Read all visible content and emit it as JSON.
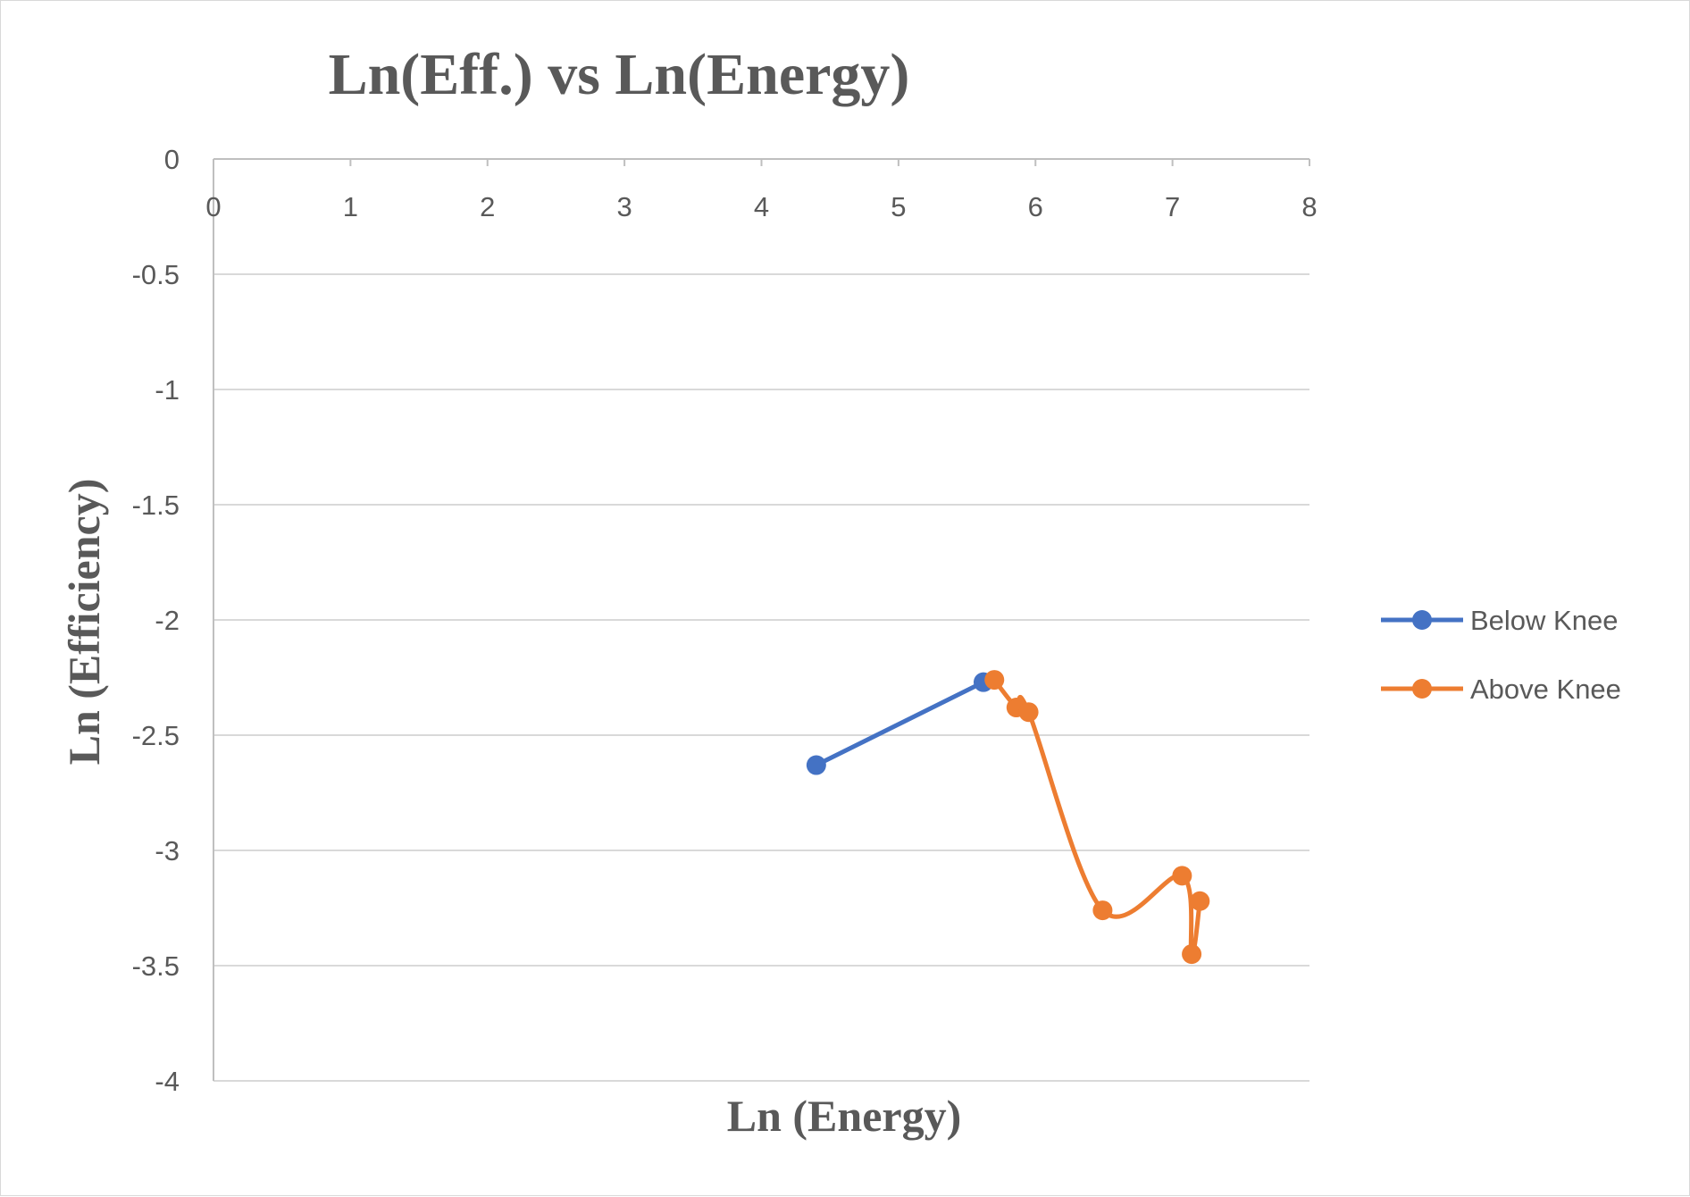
{
  "chart_data": {
    "type": "scatter",
    "title": "Ln(Eff.) vs Ln(Energy)",
    "xlabel": "Ln (Energy)",
    "ylabel": "Ln (Efficiency)",
    "xlim": [
      0,
      8
    ],
    "ylim": [
      -4,
      0
    ],
    "x_ticks": [
      "0",
      "1",
      "2",
      "3",
      "4",
      "5",
      "6",
      "7",
      "8"
    ],
    "y_ticks": [
      "0",
      "-0.5",
      "-1",
      "-1.5",
      "-2",
      "-2.5",
      "-3",
      "-3.5",
      "-4"
    ],
    "y_tick_values": [
      0,
      -0.5,
      -1,
      -1.5,
      -2,
      -2.5,
      -3,
      -3.5,
      -4
    ],
    "x_tick_values": [
      0,
      1,
      2,
      3,
      4,
      5,
      6,
      7,
      8
    ],
    "grid": true,
    "x_axis_position": "top",
    "legend_position": "right",
    "series": [
      {
        "name": "Below Knee",
        "color": "#4472C4",
        "smooth": false,
        "points": [
          [
            4.4,
            -2.63
          ],
          [
            5.62,
            -2.27
          ]
        ]
      },
      {
        "name": "Above Knee",
        "color": "#ED7D31",
        "smooth": true,
        "points": [
          [
            5.7,
            -2.26
          ],
          [
            5.86,
            -2.38
          ],
          [
            5.95,
            -2.4
          ],
          [
            6.49,
            -3.26
          ],
          [
            7.07,
            -3.11
          ],
          [
            7.14,
            -3.45
          ],
          [
            7.2,
            -3.22
          ]
        ]
      }
    ]
  }
}
